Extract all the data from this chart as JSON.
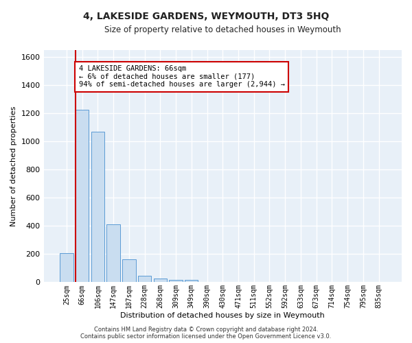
{
  "title": "4, LAKESIDE GARDENS, WEYMOUTH, DT3 5HQ",
  "subtitle": "Size of property relative to detached houses in Weymouth",
  "xlabel": "Distribution of detached houses by size in Weymouth",
  "ylabel": "Number of detached properties",
  "bar_values": [
    205,
    1225,
    1070,
    410,
    163,
    47,
    27,
    17,
    15,
    0,
    0,
    0,
    0,
    0,
    0,
    0,
    0,
    0,
    0,
    0,
    0
  ],
  "bar_labels": [
    "25sqm",
    "66sqm",
    "106sqm",
    "147sqm",
    "187sqm",
    "228sqm",
    "268sqm",
    "309sqm",
    "349sqm",
    "390sqm",
    "430sqm",
    "471sqm",
    "511sqm",
    "552sqm",
    "592sqm",
    "633sqm",
    "673sqm",
    "714sqm",
    "754sqm",
    "795sqm",
    "835sqm"
  ],
  "bar_color": "#c9ddf0",
  "bar_edge_color": "#5b9bd5",
  "marker_line_color": "#cc0000",
  "marker_bar_index": 1,
  "annotation_text": "4 LAKESIDE GARDENS: 66sqm\n← 6% of detached houses are smaller (177)\n94% of semi-detached houses are larger (2,944) →",
  "annotation_box_color": "#ffffff",
  "annotation_box_edge": "#cc0000",
  "ylim": [
    0,
    1650
  ],
  "yticks": [
    0,
    200,
    400,
    600,
    800,
    1000,
    1200,
    1400,
    1600
  ],
  "footer_line1": "Contains HM Land Registry data © Crown copyright and database right 2024.",
  "footer_line2": "Contains public sector information licensed under the Open Government Licence v3.0.",
  "fig_bg_color": "#ffffff",
  "plot_bg_color": "#e8f0f8",
  "grid_color": "#ffffff",
  "title_fontsize": 10,
  "subtitle_fontsize": 8.5,
  "ylabel_fontsize": 8,
  "xlabel_fontsize": 8,
  "ytick_fontsize": 8,
  "xtick_fontsize": 7
}
